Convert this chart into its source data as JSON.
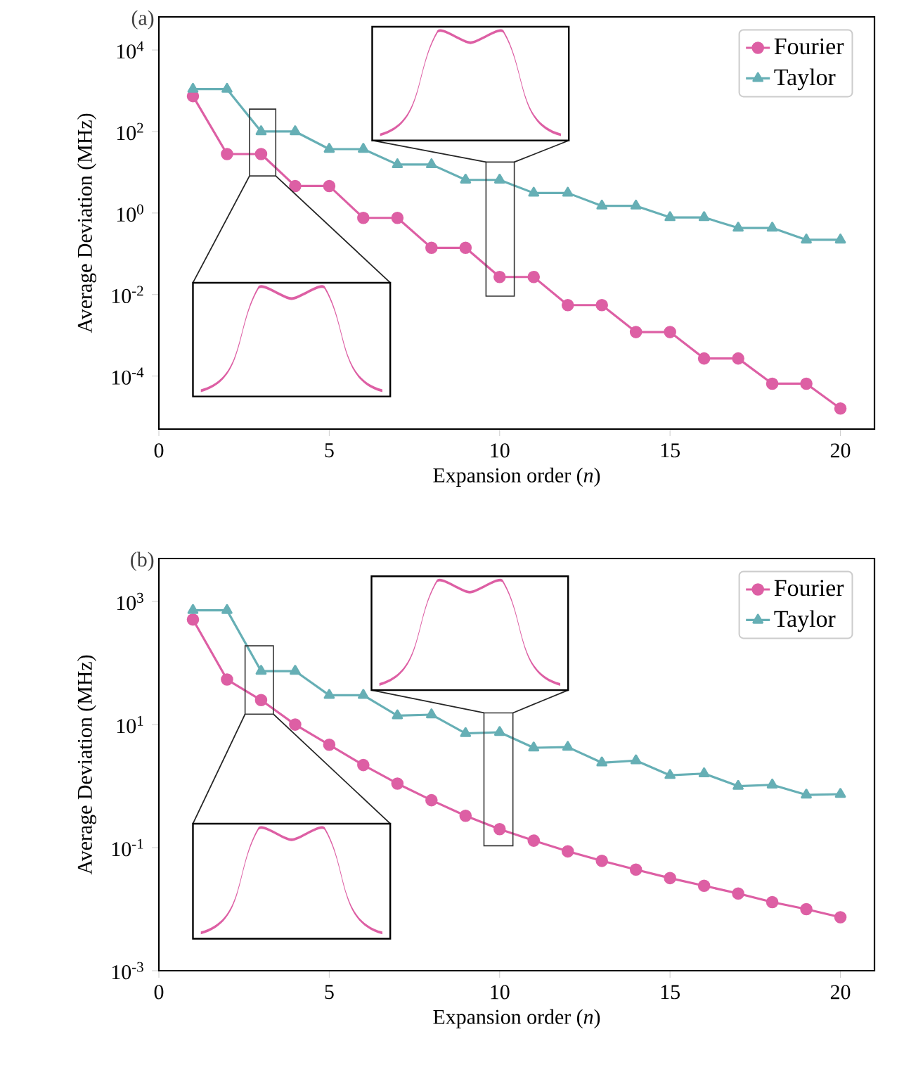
{
  "chart_data": [
    {
      "type": "line",
      "annotations": [
        "(a)"
      ],
      "xlabel": "Expansion order (*n*)",
      "ylabel": "Average Deviation (MHz)",
      "log": "y",
      "legend": "top right",
      "grid": false,
      "x": [
        1,
        2,
        3,
        4,
        5,
        6,
        7,
        8,
        9,
        10,
        11,
        12,
        13,
        14,
        15,
        16,
        17,
        18,
        19,
        20
      ],
      "xlim": [
        0,
        21
      ],
      "ylim": [
        5e-06,
        65000
      ],
      "xticks": [
        0,
        5,
        10,
        15,
        20
      ],
      "yticks": [
        {
          "value": 0.0001,
          "label": "10$^{-4}$"
        },
        {
          "value": 0.01,
          "label": "10$^{-2}$"
        },
        {
          "value": 1,
          "label": "10$^{0}$"
        },
        {
          "value": 100,
          "label": "10$^{2}$"
        },
        {
          "value": 10000,
          "label": "10$^{4}$"
        }
      ],
      "series": [
        {
          "name": "Fourier",
          "color": "#dd5fa4",
          "marker": "circle",
          "values": [
            740,
            28,
            28,
            4.6,
            4.6,
            0.76,
            0.76,
            0.14,
            0.14,
            0.027,
            0.027,
            0.0055,
            0.0055,
            0.0012,
            0.0012,
            0.00027,
            0.00027,
            6.5e-05,
            6.5e-05,
            1.6e-05
          ]
        },
        {
          "name": "Taylor",
          "color": "#66afb5",
          "marker": "triangle",
          "values": [
            1100,
            1100,
            100,
            100,
            37,
            37,
            15.5,
            15.5,
            6.5,
            6.5,
            3.1,
            3.1,
            1.5,
            1.5,
            0.78,
            0.78,
            0.43,
            0.43,
            0.22,
            0.22
          ]
        }
      ]
    },
    {
      "type": "line",
      "annotations": [
        "(b)"
      ],
      "xlabel": "Expansion order (*n*)",
      "ylabel": "Average Deviation (MHz)",
      "log": "y",
      "legend": "top right",
      "grid": false,
      "x": [
        1,
        2,
        3,
        4,
        5,
        6,
        7,
        8,
        9,
        10,
        11,
        12,
        13,
        14,
        15,
        16,
        17,
        18,
        19,
        20
      ],
      "xlim": [
        0,
        21
      ],
      "ylim": [
        0.001,
        5000
      ],
      "xticks": [
        0,
        5,
        10,
        15,
        20
      ],
      "yticks": [
        {
          "value": 0.001,
          "label": "10$^{-3}$"
        },
        {
          "value": 0.1,
          "label": "10$^{-1}$"
        },
        {
          "value": 10,
          "label": "10$^{1}$"
        },
        {
          "value": 1000,
          "label": "10$^{3}$"
        }
      ],
      "series": [
        {
          "name": "Fourier",
          "color": "#dd5fa4",
          "marker": "circle",
          "values": [
            510,
            54,
            25,
            10,
            4.7,
            2.2,
            1.1,
            0.59,
            0.33,
            0.2,
            0.13,
            0.087,
            0.061,
            0.044,
            0.032,
            0.024,
            0.018,
            0.013,
            0.01,
            0.0074
          ]
        },
        {
          "name": "Taylor",
          "color": "#66afb5",
          "marker": "triangle",
          "values": [
            720,
            720,
            74,
            74,
            30,
            30,
            14,
            14.5,
            7.2,
            7.5,
            4.2,
            4.3,
            2.4,
            2.6,
            1.5,
            1.6,
            1.0,
            1.05,
            0.72,
            0.74
          ]
        }
      ]
    }
  ]
}
